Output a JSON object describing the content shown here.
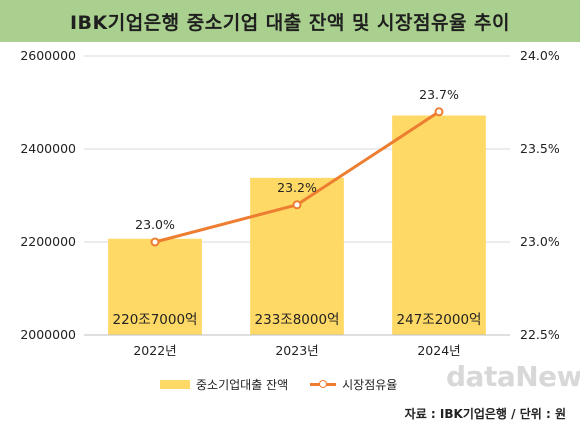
{
  "title": "IBK기업은행 중소기업 대출 잔액 및 시장점유율 추이",
  "source": "자료 : IBK기업은행 / 단위 : 원",
  "watermark": "dataNews",
  "legend": {
    "bar_label": "중소기업대출 잔액",
    "line_label": "시장점유율"
  },
  "colors": {
    "title_bg": "#a9d08e",
    "bar": "#ffd966",
    "line": "#ed7d31",
    "grid": "#d9d9d9"
  },
  "chart_data": {
    "type": "bar",
    "categories": [
      "2022년",
      "2023년",
      "2024년"
    ],
    "series": [
      {
        "name": "중소기업대출 잔액",
        "type": "bar",
        "axis": "left",
        "values": [
          2207000,
          2338000,
          2472000
        ],
        "data_labels": [
          "220조7000억",
          "233조8000억",
          "247조2000억"
        ]
      },
      {
        "name": "시장점유율",
        "type": "line",
        "axis": "right",
        "values": [
          23.0,
          23.2,
          23.7
        ],
        "data_labels": [
          "23.0%",
          "23.2%",
          "23.7%"
        ]
      }
    ],
    "left_axis": {
      "ylim": [
        2000000,
        2600000
      ],
      "ticks": [
        2000000,
        2200000,
        2400000,
        2600000
      ],
      "tick_labels": [
        "2000000",
        "2200000",
        "2400000",
        "2600000"
      ]
    },
    "right_axis": {
      "ylim": [
        22.5,
        24.0
      ],
      "ticks": [
        22.5,
        23.0,
        23.5,
        24.0
      ],
      "tick_labels": [
        "22.5%",
        "23.0%",
        "23.5%",
        "24.0%"
      ]
    },
    "grid": true,
    "legend_position": "bottom"
  }
}
